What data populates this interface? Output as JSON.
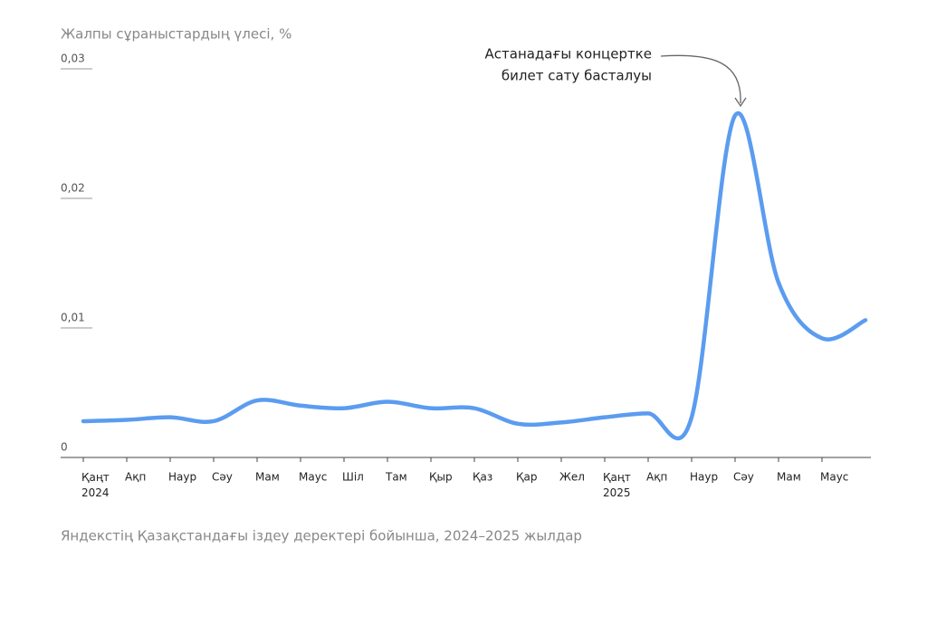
{
  "chart_data": {
    "type": "line",
    "y_label": "Жалпы сұраныстардың үлесі, %",
    "source": "Яндекстің Қазақстандағы іздеу деректері бойынша, 2024–2025 жылдар",
    "annotation_lines": [
      "Астанадағы концертке",
      "билет сату басталуы"
    ],
    "categories": [
      "Қаңт 2024",
      "Ақп",
      "Наур",
      "Сәу",
      "Мам",
      "Маус",
      "Шіл",
      "Там",
      "Қыр",
      "Қаз",
      "Қар",
      "Жел",
      "Қаңт 2025",
      "Ақп",
      "Наур",
      "Сәу",
      "Мам",
      "Маус",
      null
    ],
    "values": [
      0.0028,
      0.0029,
      0.0031,
      0.0028,
      0.0044,
      0.004,
      0.0038,
      0.0043,
      0.0038,
      0.0038,
      0.0026,
      0.0027,
      0.0031,
      0.0034,
      0.0031,
      0.0264,
      0.0135,
      0.0092,
      0.0106
    ],
    "color": "#5b9cf0",
    "ylim": [
      0,
      0.03
    ],
    "yticks": [
      0,
      {
        "value": 0.01,
        "label": "0,01"
      },
      {
        "value": 0.02,
        "label": "0,02"
      },
      {
        "value": 0.03,
        "label": "0,03"
      }
    ],
    "grid": true
  }
}
